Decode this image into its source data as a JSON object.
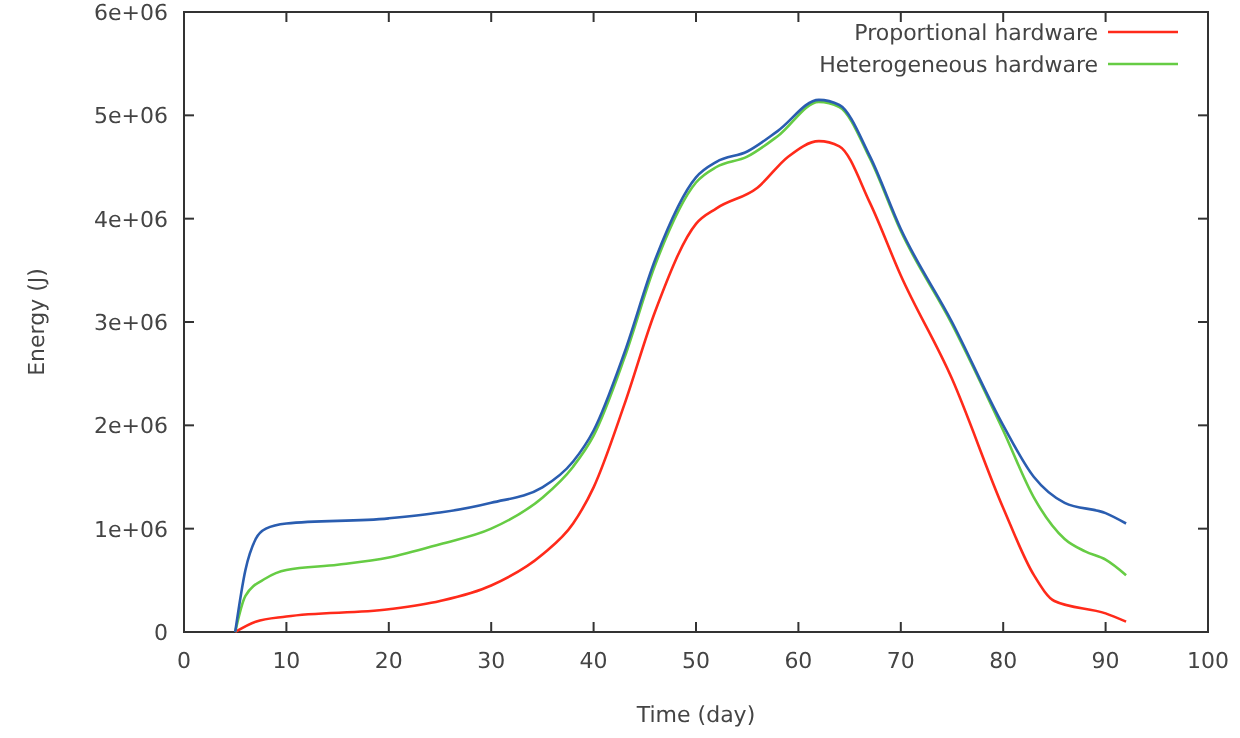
{
  "chart_data": {
    "type": "line",
    "xlabel": "Time (day)",
    "ylabel": "Energy (J)",
    "xlim": [
      0,
      100
    ],
    "xticks": [
      0,
      10,
      20,
      30,
      40,
      50,
      60,
      70,
      80,
      90,
      100
    ],
    "ylim": [
      0,
      6000000
    ],
    "yticks": [
      {
        "value": 0,
        "label": "0"
      },
      {
        "value": 1000000,
        "label": "1e+06"
      },
      {
        "value": 2000000,
        "label": "2e+06"
      },
      {
        "value": 3000000,
        "label": "3e+06"
      },
      {
        "value": 4000000,
        "label": "4e+06"
      },
      {
        "value": 5000000,
        "label": "5e+06"
      },
      {
        "value": 6000000,
        "label": "6e+06"
      }
    ],
    "grid": false,
    "legend": "top right",
    "marker": "none",
    "line_style": "solid",
    "series": [
      {
        "name": "Proportional hardware",
        "color": "#ff2a1a",
        "x": [
          5,
          7,
          10,
          20,
          25,
          30,
          35,
          38,
          40,
          43,
          46,
          50,
          52,
          56,
          59,
          62,
          64,
          67,
          70,
          75,
          80,
          83,
          85,
          90,
          92
        ],
        "values": [
          0,
          100000,
          150000,
          220000,
          300000,
          450000,
          750000,
          1050000,
          1400000,
          2200000,
          3100000,
          3950000,
          4100000,
          4300000,
          4600000,
          4750000,
          4700000,
          4150000,
          3450000,
          2450000,
          1200000,
          550000,
          300000,
          180000,
          100000
        ]
      },
      {
        "name": "Heterogeneous hardware",
        "color": "#66cc44",
        "x": [
          5,
          6,
          8,
          10,
          15,
          20,
          25,
          30,
          35,
          38,
          40,
          43,
          46,
          50,
          52,
          55,
          58,
          62,
          64,
          67,
          70,
          75,
          80,
          83,
          86,
          88,
          90,
          92
        ],
        "values": [
          0,
          350000,
          520000,
          600000,
          650000,
          720000,
          850000,
          1000000,
          1300000,
          1600000,
          1900000,
          2650000,
          3550000,
          4350000,
          4500000,
          4600000,
          4800000,
          5130000,
          5080000,
          4580000,
          3880000,
          2980000,
          1950000,
          1300000,
          900000,
          780000,
          700000,
          550000
        ]
      },
      {
        "color": "#2a5db0",
        "x": [
          5,
          6,
          7,
          8,
          10,
          20,
          30,
          35,
          38,
          40,
          43,
          46,
          50,
          52,
          55,
          58,
          62,
          64,
          67,
          70,
          75,
          80,
          83,
          86,
          90,
          92
        ],
        "values": [
          0,
          600000,
          900000,
          1000000,
          1050000,
          1100000,
          1250000,
          1400000,
          1650000,
          1950000,
          2700000,
          3600000,
          4400000,
          4550000,
          4650000,
          4850000,
          5150000,
          5100000,
          4600000,
          3900000,
          3000000,
          2000000,
          1500000,
          1250000,
          1150000,
          1050000
        ]
      }
    ]
  }
}
